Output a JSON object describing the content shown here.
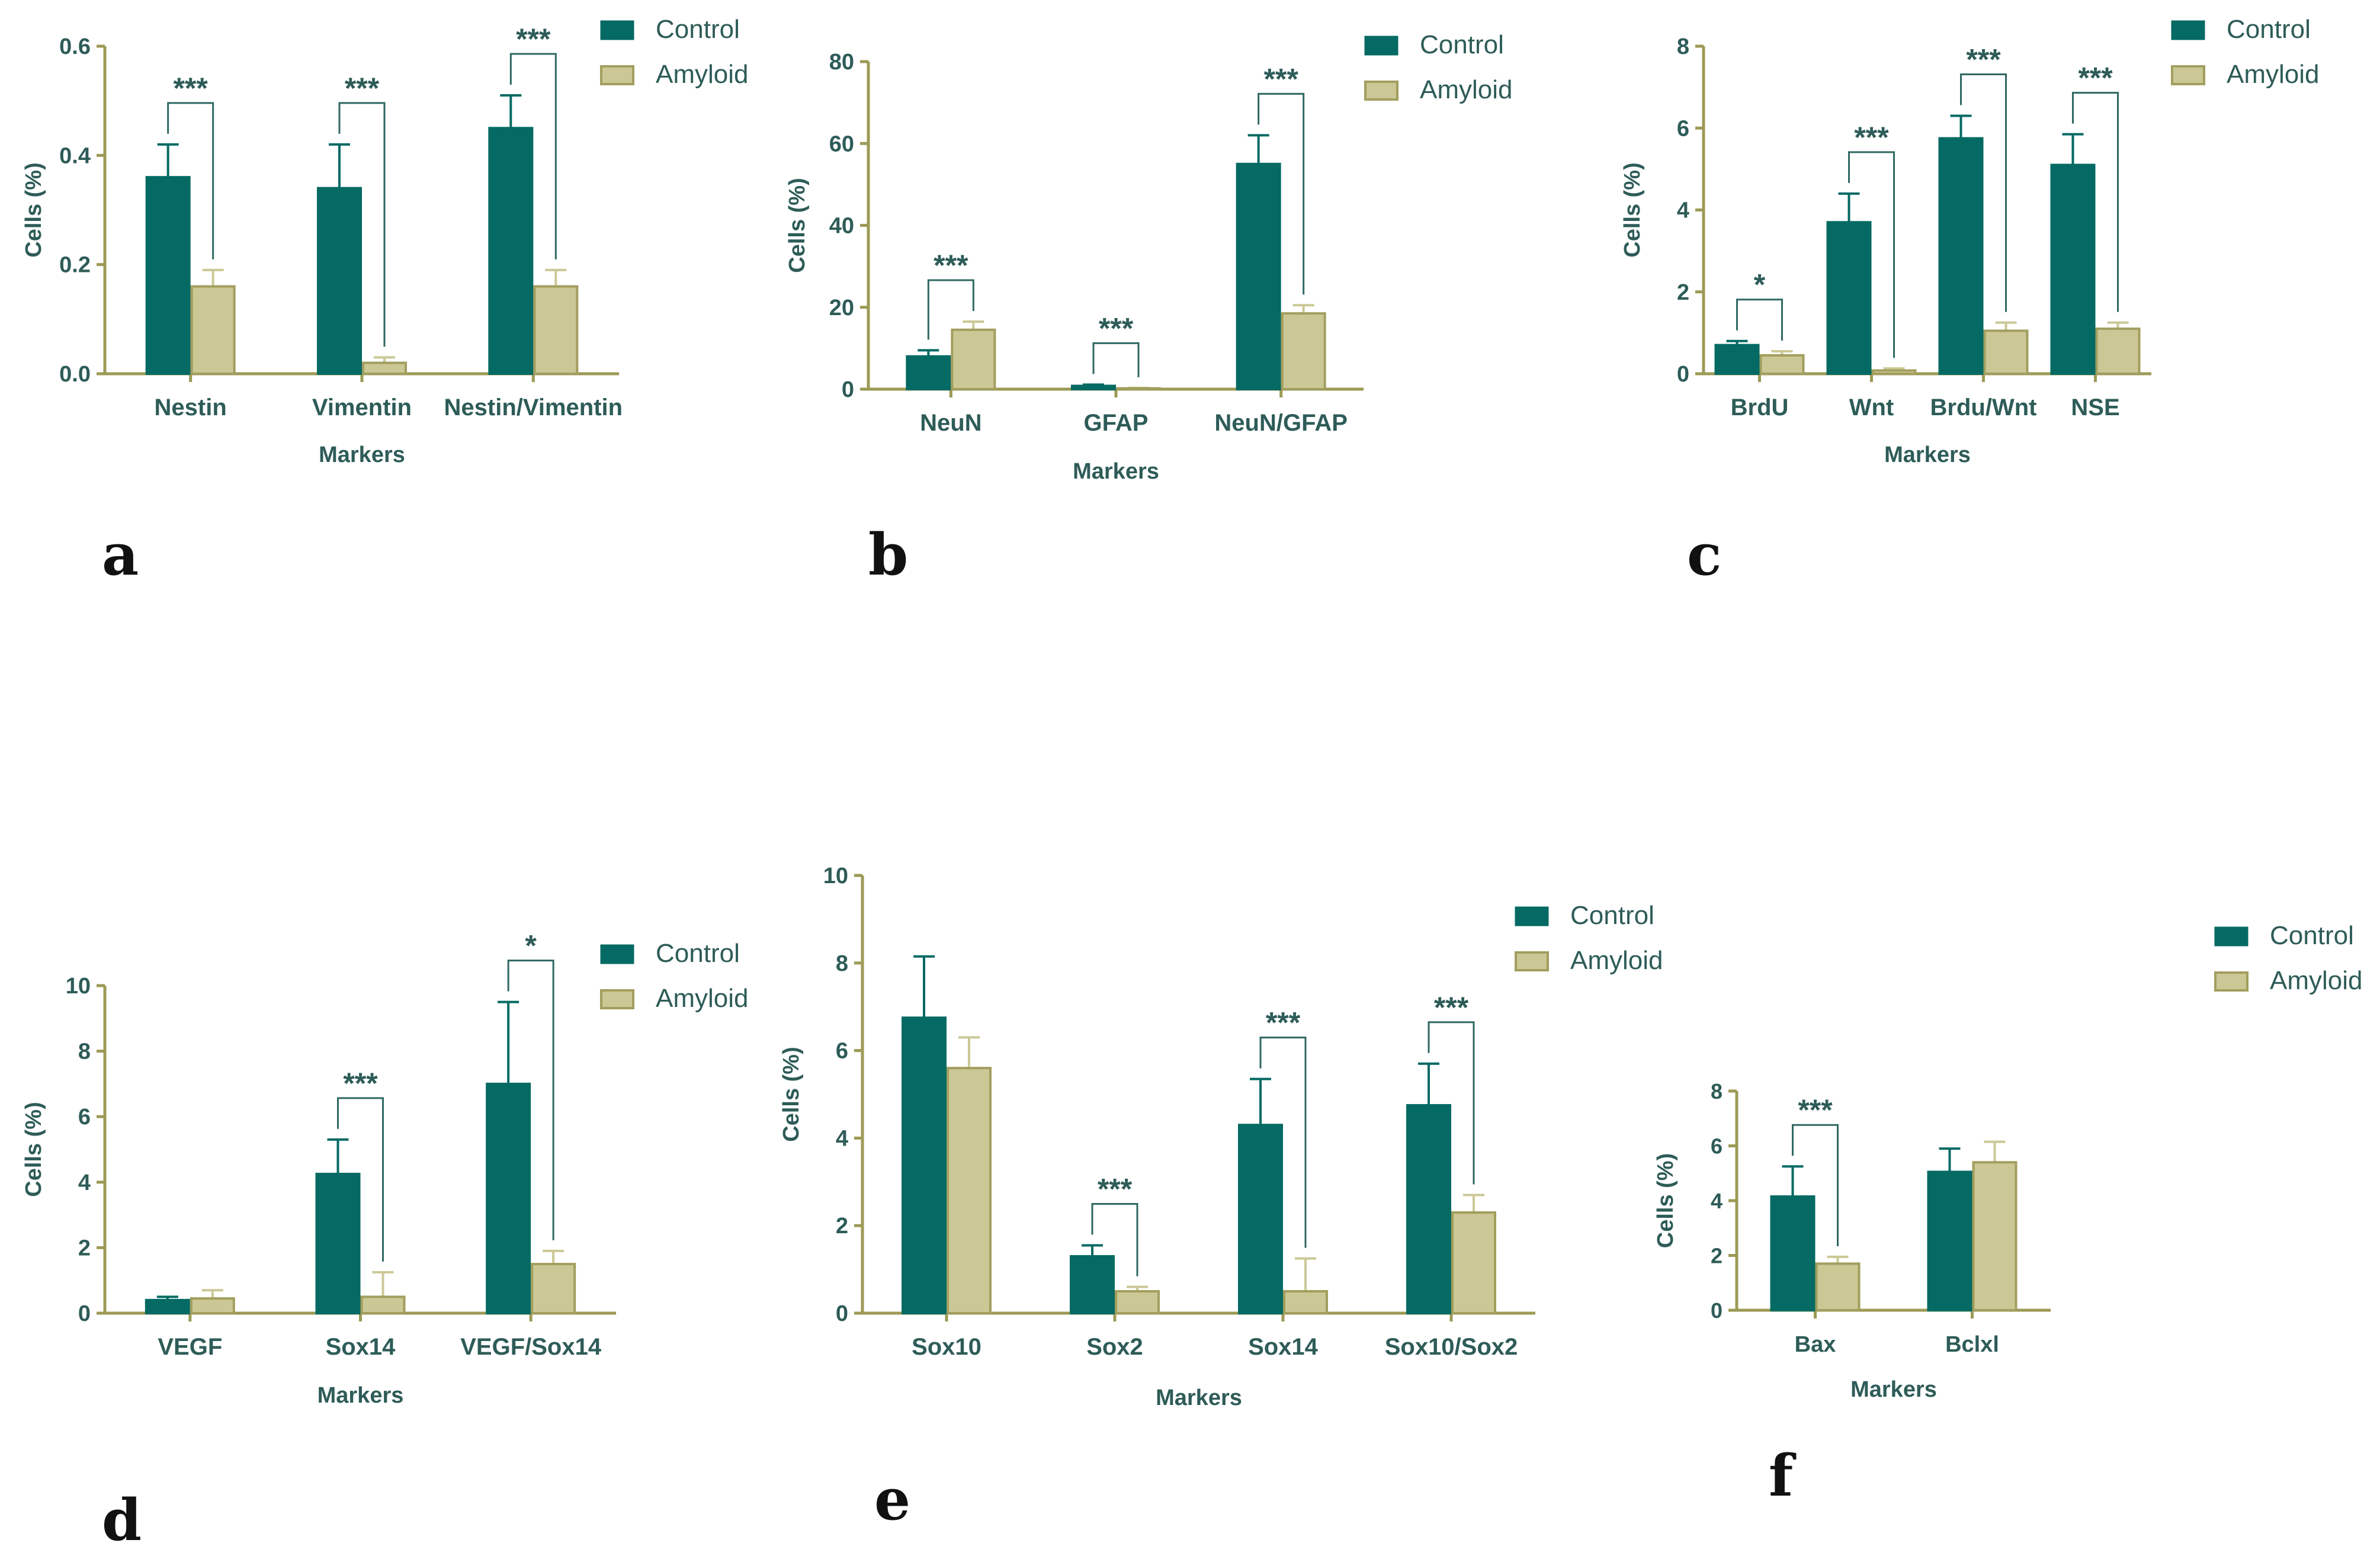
{
  "colors": {
    "control": "#046A63",
    "amyloid": "#CBC896",
    "amyloid_edge": "#A29E5E",
    "axis": "#9C9A55",
    "text": "#2E5C58",
    "sig_line": "#2F6863"
  },
  "legend_labels": {
    "control": "Control",
    "amyloid": "Amyloid"
  },
  "chart_data": [
    {
      "id": "a",
      "panel_label": "a",
      "type": "bar",
      "categories": [
        "Nestin",
        "Vimentin",
        "Nestin/Vimentin"
      ],
      "series": [
        {
          "name": "Control",
          "values": [
            0.36,
            0.34,
            0.45
          ],
          "errors": [
            0.06,
            0.08,
            0.06
          ]
        },
        {
          "name": "Amyloid",
          "values": [
            0.16,
            0.02,
            0.16
          ],
          "errors": [
            0.03,
            0.01,
            0.03
          ]
        }
      ],
      "yticks": [
        "0.0",
        "0.2",
        "0.4",
        "0.6"
      ],
      "ylim": [
        0,
        0.6
      ],
      "xlabel": "Markers",
      "ylabel": "Cells (%)",
      "significance": [
        {
          "category": 0,
          "text": "***"
        },
        {
          "category": 1,
          "text": "***"
        },
        {
          "category": 2,
          "text": "***"
        }
      ]
    },
    {
      "id": "b",
      "panel_label": "b",
      "type": "bar",
      "categories": [
        "NeuN",
        "GFAP",
        "NeuN/GFAP"
      ],
      "series": [
        {
          "name": "Control",
          "values": [
            8,
            0.8,
            55
          ],
          "errors": [
            1.5,
            0.3,
            7
          ]
        },
        {
          "name": "Amyloid",
          "values": [
            14.5,
            0.2,
            18.5
          ],
          "errors": [
            2,
            0.1,
            2
          ]
        }
      ],
      "yticks": [
        "0",
        "20",
        "40",
        "60",
        "80"
      ],
      "ylim": [
        0,
        80
      ],
      "xlabel": "Markers",
      "ylabel": "Cells (%)",
      "significance": [
        {
          "category": 0,
          "text": "***"
        },
        {
          "category": 1,
          "text": "***"
        },
        {
          "category": 2,
          "text": "***"
        }
      ]
    },
    {
      "id": "c",
      "panel_label": "c",
      "type": "bar",
      "categories": [
        "BrdU",
        "Wnt",
        "Brdu/Wnt",
        "NSE"
      ],
      "series": [
        {
          "name": "Control",
          "values": [
            0.7,
            3.7,
            5.75,
            5.1
          ],
          "errors": [
            0.1,
            0.7,
            0.55,
            0.75
          ]
        },
        {
          "name": "Amyloid",
          "values": [
            0.45,
            0.08,
            1.05,
            1.1
          ],
          "errors": [
            0.1,
            0.05,
            0.2,
            0.15
          ]
        }
      ],
      "yticks": [
        "0",
        "2",
        "4",
        "6",
        "8"
      ],
      "ylim": [
        0,
        8
      ],
      "xlabel": "Markers",
      "ylabel": "Cells (%)",
      "significance": [
        {
          "category": 0,
          "text": "*"
        },
        {
          "category": 1,
          "text": "***"
        },
        {
          "category": 2,
          "text": "***"
        },
        {
          "category": 3,
          "text": "***"
        }
      ]
    },
    {
      "id": "d",
      "panel_label": "d",
      "type": "bar",
      "categories": [
        "VEGF",
        "Sox14",
        "VEGF/Sox14"
      ],
      "series": [
        {
          "name": "Control",
          "values": [
            0.4,
            4.25,
            7.0
          ],
          "errors": [
            0.1,
            1.05,
            2.5
          ]
        },
        {
          "name": "Amyloid",
          "values": [
            0.45,
            0.5,
            1.5
          ],
          "errors": [
            0.25,
            0.75,
            0.4
          ]
        }
      ],
      "yticks": [
        "0",
        "2",
        "4",
        "6",
        "8",
        "10"
      ],
      "ylim": [
        0,
        10
      ],
      "xlabel": "Markers",
      "ylabel": "Cells (%)",
      "significance": [
        {
          "category": 1,
          "text": "***"
        },
        {
          "category": 2,
          "text": "*"
        }
      ]
    },
    {
      "id": "e",
      "panel_label": "e",
      "type": "bar",
      "categories": [
        "Sox10",
        "Sox2",
        "Sox14",
        "Sox10/Sox2"
      ],
      "series": [
        {
          "name": "Control",
          "values": [
            6.75,
            1.3,
            4.3,
            4.75
          ],
          "errors": [
            1.4,
            0.25,
            1.05,
            0.95
          ]
        },
        {
          "name": "Amyloid",
          "values": [
            5.6,
            0.5,
            0.5,
            2.3
          ],
          "errors": [
            0.7,
            0.1,
            0.75,
            0.4
          ]
        }
      ],
      "yticks": [
        "0",
        "2",
        "4",
        "6",
        "8",
        "10"
      ],
      "ylim": [
        0,
        10
      ],
      "xlabel": "Markers",
      "ylabel": "Cells (%)",
      "significance": [
        {
          "category": 1,
          "text": "***"
        },
        {
          "category": 2,
          "text": "***"
        },
        {
          "category": 3,
          "text": "***"
        }
      ]
    },
    {
      "id": "f",
      "panel_label": "f",
      "type": "bar",
      "categories": [
        "Bax",
        "Bclxl"
      ],
      "series": [
        {
          "name": "Control",
          "values": [
            4.15,
            5.05
          ],
          "errors": [
            1.1,
            0.85
          ]
        },
        {
          "name": "Amyloid",
          "values": [
            1.7,
            5.4
          ],
          "errors": [
            0.25,
            0.75
          ]
        }
      ],
      "yticks": [
        "0",
        "2",
        "4",
        "6",
        "8"
      ],
      "ylim": [
        0,
        8
      ],
      "xlabel": "Markers",
      "ylabel": "Cells (%)",
      "significance": [
        {
          "category": 0,
          "text": "***"
        }
      ]
    }
  ]
}
